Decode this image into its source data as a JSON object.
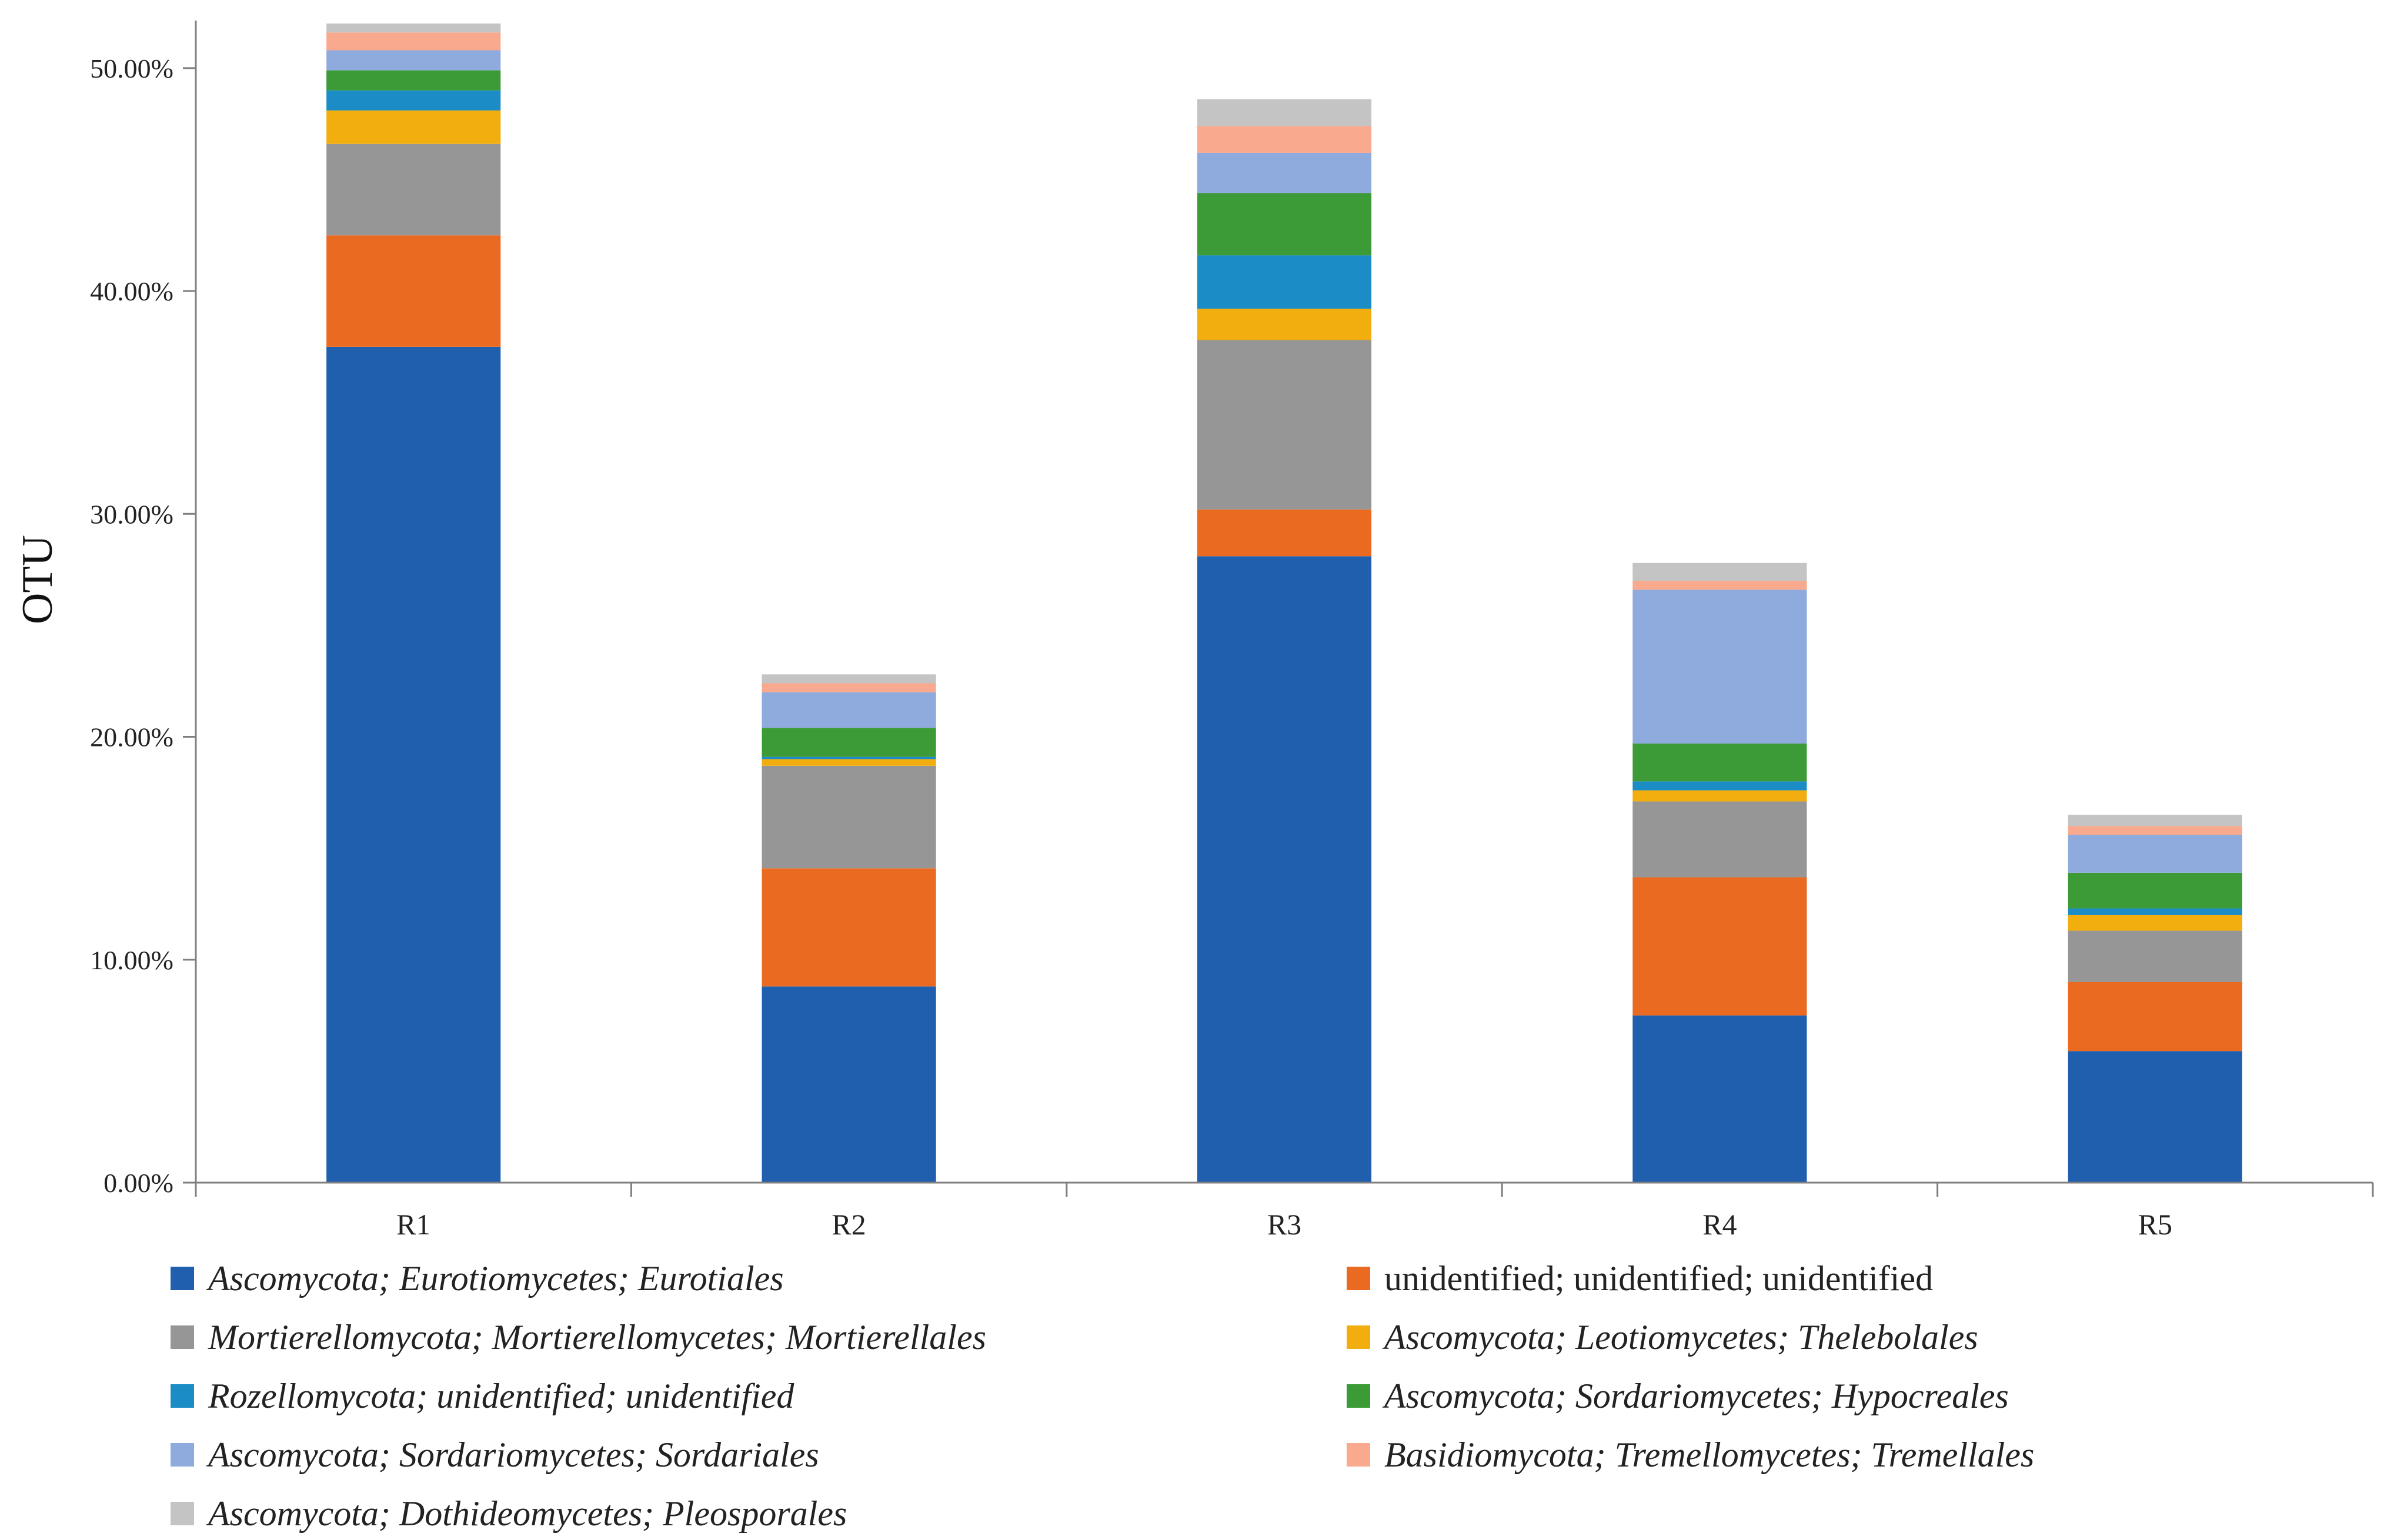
{
  "chart_data": {
    "type": "bar",
    "stacked": true,
    "ylabel": "OTU",
    "xlabel": "",
    "ylim": [
      0,
      52
    ],
    "ytick_labels": [
      "0.00%",
      "10.00%",
      "20.00%",
      "30.00%",
      "40.00%",
      "50.00%"
    ],
    "ytick_values": [
      0,
      10,
      20,
      30,
      40,
      50
    ],
    "categories": [
      "R1",
      "R2",
      "R3",
      "R4",
      "R5"
    ],
    "legend_position": "bottom",
    "series": [
      {
        "name": "Ascomycota; Eurotiomycetes; Eurotiales",
        "color": "#1f5fad",
        "values": [
          37.5,
          8.8,
          28.1,
          7.5,
          5.9
        ]
      },
      {
        "name": "unidentified; unidentified; unidentified",
        "color": "#ea6a22",
        "values": [
          5.0,
          5.3,
          2.1,
          6.2,
          3.1
        ]
      },
      {
        "name": "Mortierellomycota; Mortierellomycetes; Mortierellales",
        "color": "#969696",
        "values": [
          4.1,
          4.6,
          7.6,
          3.4,
          2.3
        ]
      },
      {
        "name": "Ascomycota; Leotiomycetes; Thelebolales",
        "color": "#f2ae0f",
        "values": [
          1.5,
          0.3,
          1.4,
          0.5,
          0.7
        ]
      },
      {
        "name": "Rozellomycota; unidentified; unidentified",
        "color": "#1b8cc5",
        "values": [
          0.9,
          0.1,
          2.4,
          0.4,
          0.3
        ]
      },
      {
        "name": "Ascomycota; Sordariomycetes; Hypocreales",
        "color": "#3c9b37",
        "values": [
          0.9,
          1.3,
          2.8,
          1.7,
          1.6
        ]
      },
      {
        "name": "Ascomycota; Sordariomycetes; Sordariales",
        "color": "#8faadc",
        "values": [
          0.9,
          1.6,
          1.8,
          6.9,
          1.7
        ]
      },
      {
        "name": "Basidiomycota; Tremellomycetes; Tremellales",
        "color": "#f9a98e",
        "values": [
          0.8,
          0.4,
          1.2,
          0.4,
          0.4
        ]
      },
      {
        "name": "Ascomycota; Dothideomycetes; Pleosporales",
        "color": "#c4c4c4",
        "values": [
          0.4,
          0.4,
          1.2,
          0.8,
          0.5
        ]
      }
    ]
  }
}
